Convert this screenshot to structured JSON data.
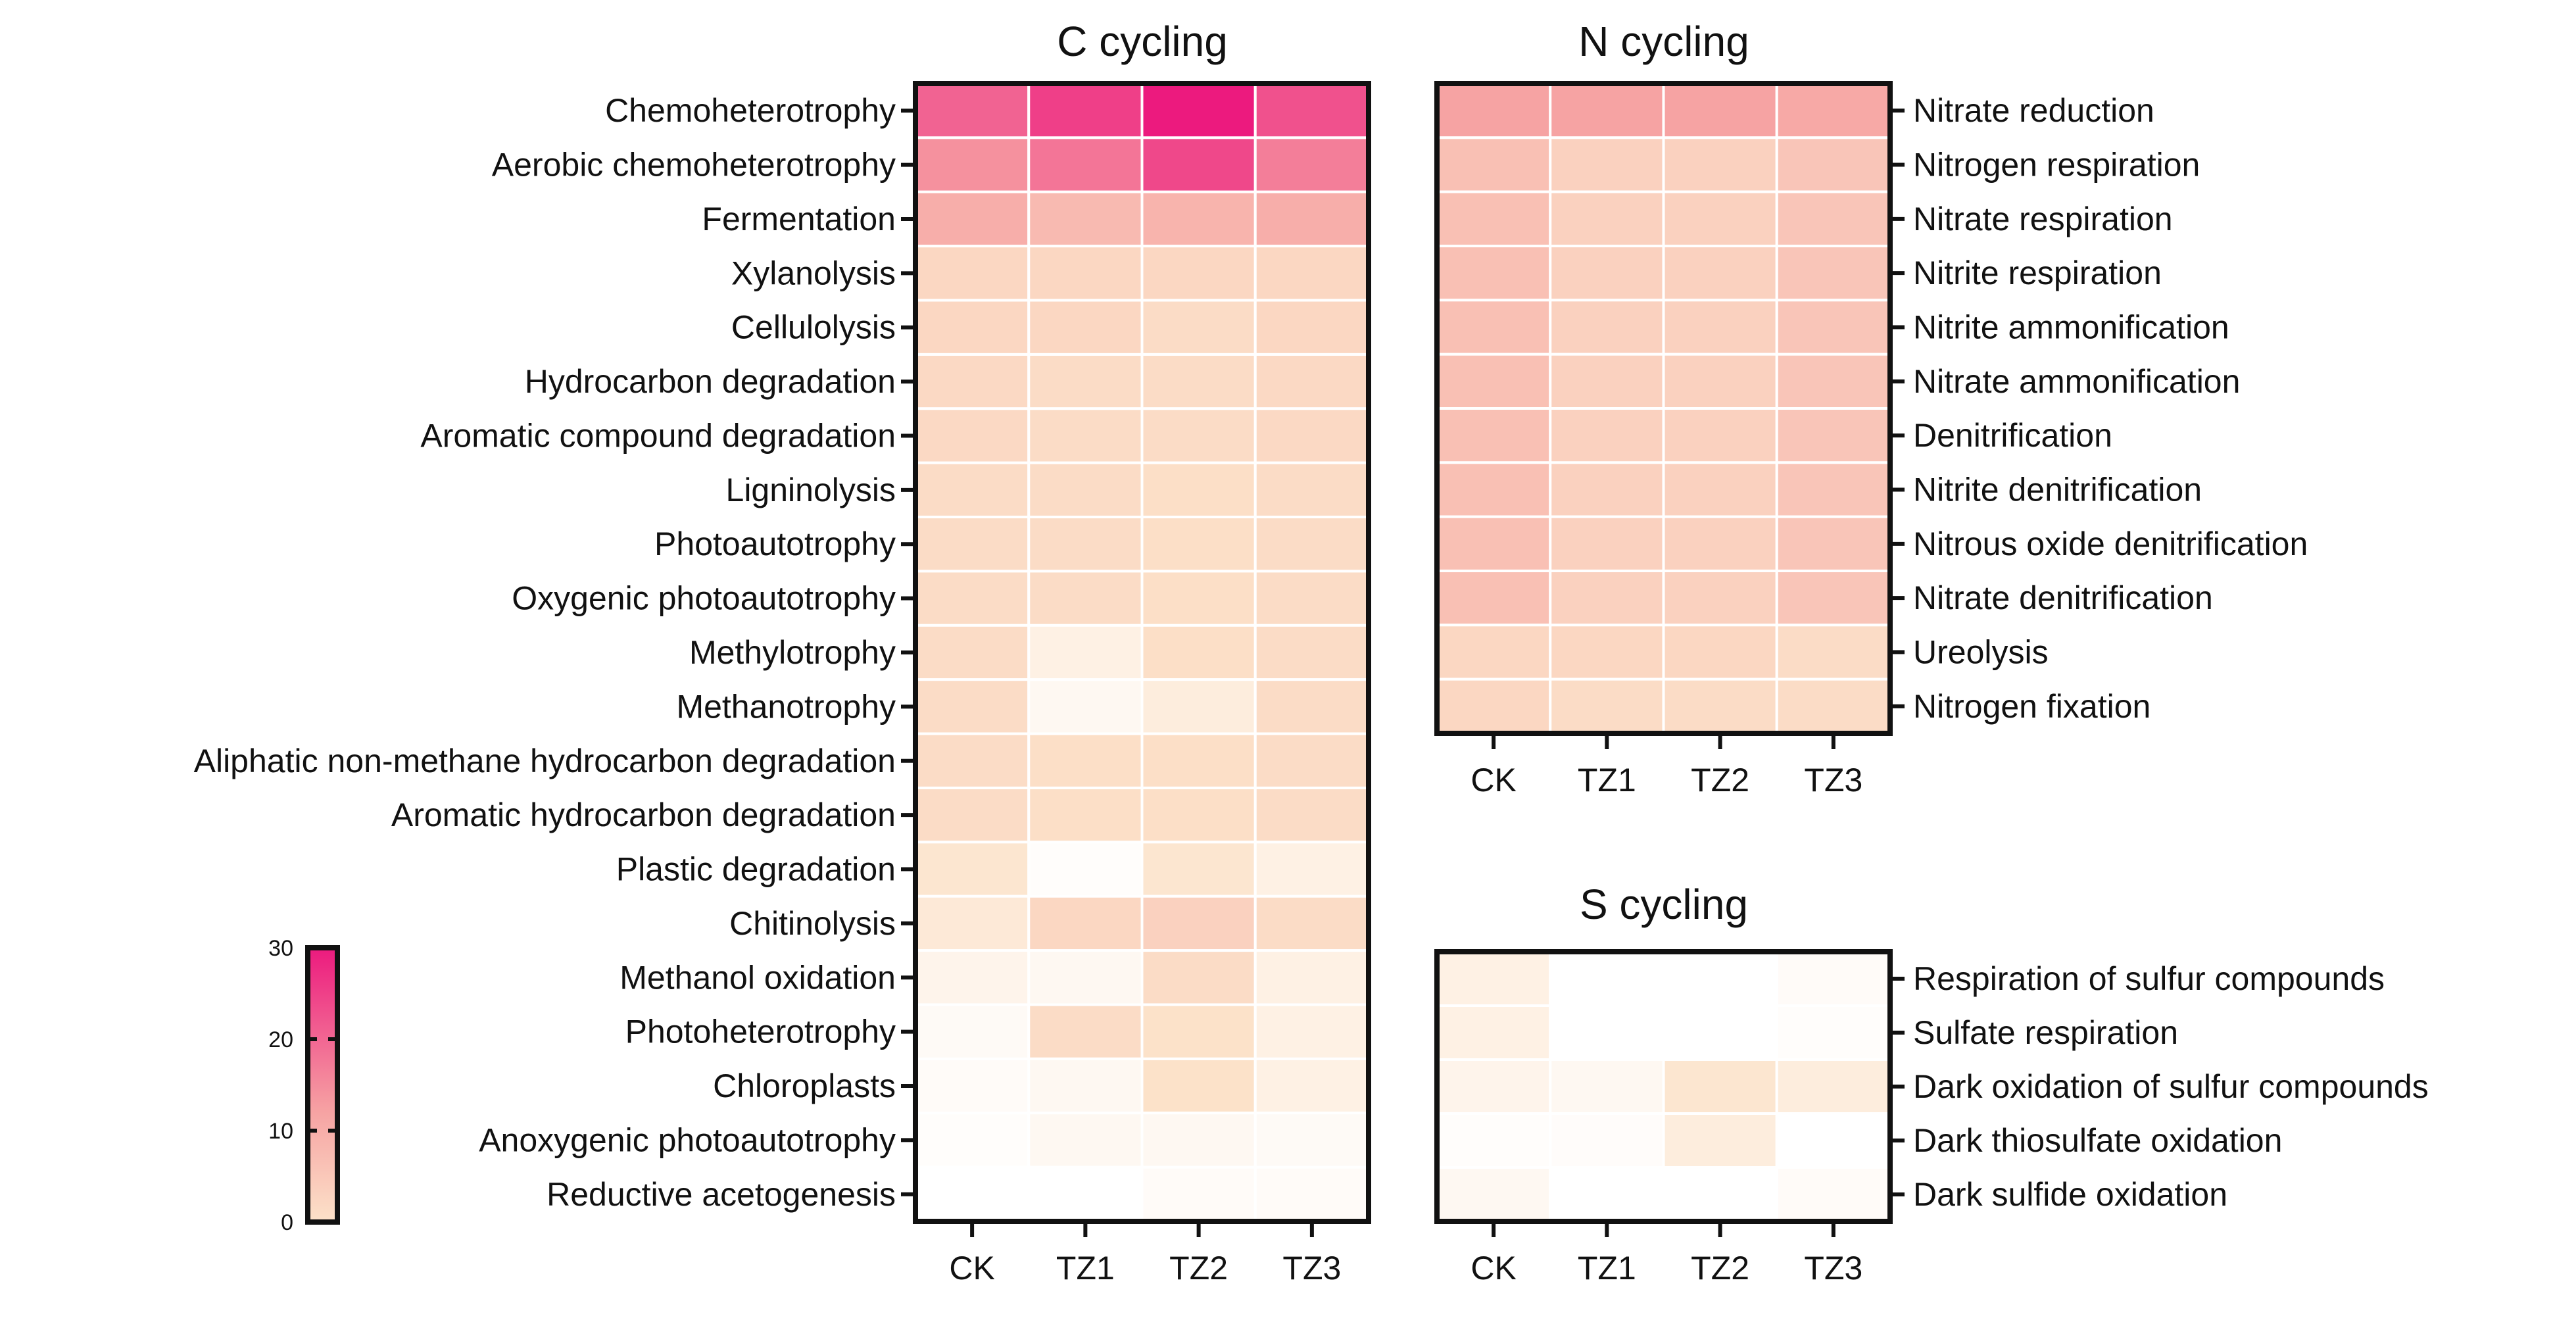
{
  "chart_data": [
    {
      "id": "c",
      "type": "heatmap",
      "title": "C cycling",
      "columns": [
        "CK",
        "TZ1",
        "TZ2",
        "TZ3"
      ],
      "label_side": "left",
      "rows": [
        {
          "label": "Chemoheterotrophy",
          "values": [
            22,
            26,
            30,
            24
          ]
        },
        {
          "label": "Aerobic chemoheterotrophy",
          "values": [
            17,
            20,
            25,
            19
          ]
        },
        {
          "label": "Fermentation",
          "values": [
            13,
            11,
            12,
            13
          ]
        },
        {
          "label": "Xylanolysis",
          "values": [
            6,
            6,
            6,
            6
          ]
        },
        {
          "label": "Cellulolysis",
          "values": [
            6,
            6,
            5,
            6
          ]
        },
        {
          "label": "Hydrocarbon degradation",
          "values": [
            5.5,
            5,
            5,
            5.5
          ]
        },
        {
          "label": "Aromatic compound degradation",
          "values": [
            5.5,
            5,
            5,
            5.5
          ]
        },
        {
          "label": "Ligninolysis",
          "values": [
            5,
            5,
            4.5,
            5
          ]
        },
        {
          "label": "Photoautotrophy",
          "values": [
            5,
            5,
            4.5,
            5
          ]
        },
        {
          "label": "Oxygenic photoautotrophy",
          "values": [
            5,
            5,
            4.5,
            5
          ]
        },
        {
          "label": "Methylotrophy",
          "values": [
            5,
            2,
            4.5,
            5
          ]
        },
        {
          "label": "Methanotrophy",
          "values": [
            5,
            1,
            2.5,
            5
          ]
        },
        {
          "label": "Aliphatic non-methane hydrocarbon degradation",
          "values": [
            5,
            4.5,
            4.5,
            5
          ]
        },
        {
          "label": "Aromatic hydrocarbon degradation",
          "values": [
            5,
            4.5,
            4.5,
            5
          ]
        },
        {
          "label": "Plastic degradation",
          "values": [
            3.5,
            0.3,
            3.5,
            2
          ]
        },
        {
          "label": "Chitinolysis",
          "values": [
            3,
            6,
            7,
            5
          ]
        },
        {
          "label": "Methanol oxidation",
          "values": [
            1.5,
            1,
            5,
            2
          ]
        },
        {
          "label": "Photoheterotrophy",
          "values": [
            0.7,
            5,
            4,
            2
          ]
        },
        {
          "label": "Chloroplasts",
          "values": [
            0.5,
            1,
            4,
            2
          ]
        },
        {
          "label": "Anoxygenic photoautotrophy",
          "values": [
            0.3,
            1,
            1,
            0.7
          ]
        },
        {
          "label": "Reductive acetogenesis",
          "values": [
            0,
            0,
            0.5,
            0.5
          ]
        }
      ]
    },
    {
      "id": "n",
      "type": "heatmap",
      "title": "N cycling",
      "columns": [
        "CK",
        "TZ1",
        "TZ2",
        "TZ3"
      ],
      "label_side": "right",
      "rows": [
        {
          "label": "Nitrate reduction",
          "values": [
            15,
            15,
            15,
            14
          ]
        },
        {
          "label": "Nitrogen respiration",
          "values": [
            10,
            7,
            7,
            9
          ]
        },
        {
          "label": "Nitrate respiration",
          "values": [
            10,
            7,
            7,
            9
          ]
        },
        {
          "label": "Nitrite respiration",
          "values": [
            10,
            7,
            7,
            9
          ]
        },
        {
          "label": "Nitrite ammonification",
          "values": [
            10,
            7,
            7,
            9
          ]
        },
        {
          "label": "Nitrate ammonification",
          "values": [
            10,
            7,
            7,
            9
          ]
        },
        {
          "label": "Denitrification",
          "values": [
            10,
            7,
            7,
            9
          ]
        },
        {
          "label": "Nitrite denitrification",
          "values": [
            10,
            7,
            7,
            9
          ]
        },
        {
          "label": "Nitrous oxide denitrification",
          "values": [
            10,
            7,
            7,
            9
          ]
        },
        {
          "label": "Nitrate denitrification",
          "values": [
            10,
            7,
            7,
            9
          ]
        },
        {
          "label": "Ureolysis",
          "values": [
            6,
            6,
            6,
            5
          ]
        },
        {
          "label": "Nitrogen fixation",
          "values": [
            6,
            5,
            5,
            5
          ]
        }
      ]
    },
    {
      "id": "s",
      "type": "heatmap",
      "title": "S cycling",
      "columns": [
        "CK",
        "TZ1",
        "TZ2",
        "TZ3"
      ],
      "label_side": "right",
      "rows": [
        {
          "label": "Respiration of sulfur compounds",
          "values": [
            2,
            0,
            0,
            0.5
          ]
        },
        {
          "label": "Sulfate respiration",
          "values": [
            2,
            0,
            0,
            0.3
          ]
        },
        {
          "label": "Dark oxidation of sulfur compounds",
          "values": [
            1.5,
            1,
            3.5,
            2.5
          ]
        },
        {
          "label": "Dark thiosulfate oxidation",
          "values": [
            0.3,
            0.4,
            2.5,
            0
          ]
        },
        {
          "label": "Dark sulfide oxidation",
          "values": [
            1,
            0,
            0,
            0.5
          ]
        }
      ]
    }
  ],
  "colorbar": {
    "ticks": [
      "30",
      "20",
      "10",
      "0"
    ],
    "range": [
      0,
      30
    ],
    "colors": {
      "zero": "#ffffff",
      "low": "#fce2c9",
      "high": "#ec1a7e"
    }
  }
}
